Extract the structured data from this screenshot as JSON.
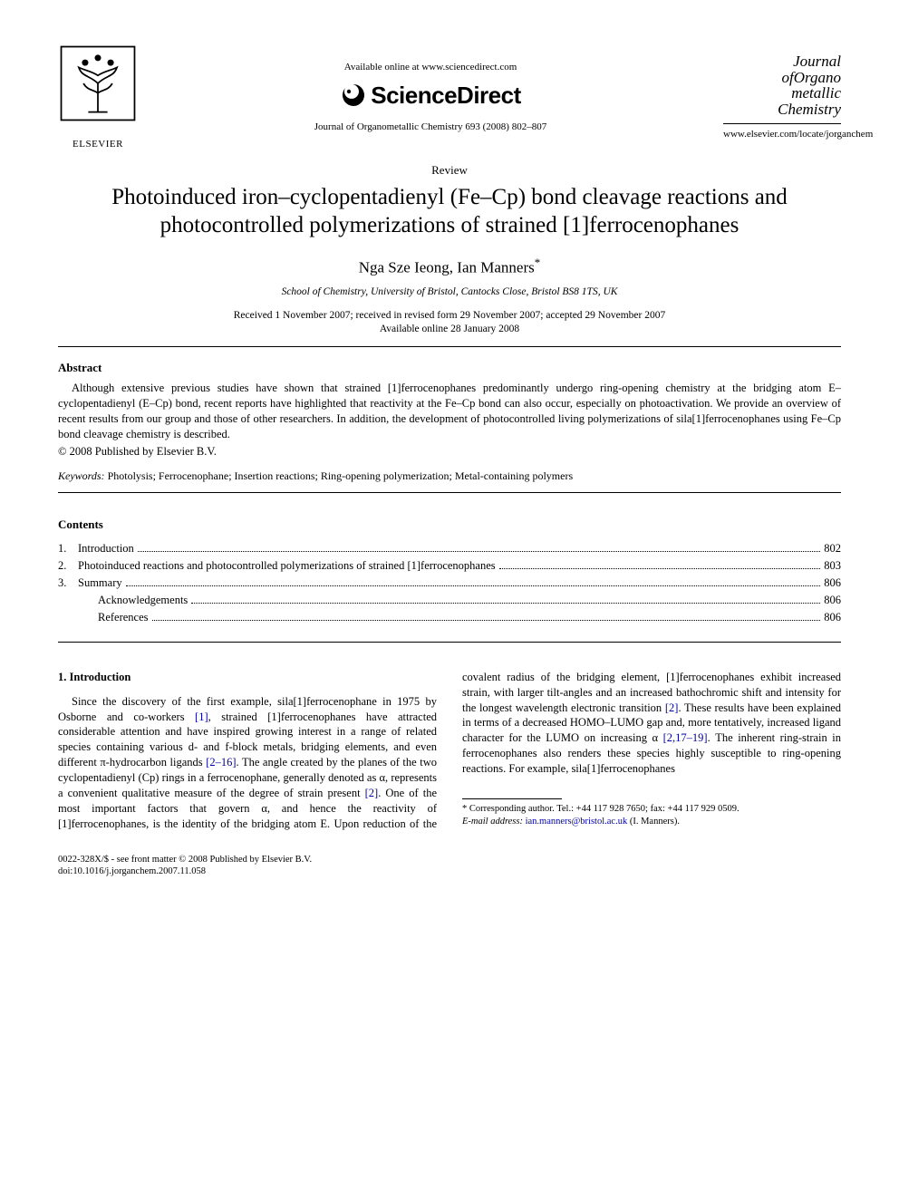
{
  "header": {
    "available_online": "Available online at www.sciencedirect.com",
    "sciencedirect": "ScienceDirect",
    "citation": "Journal of Organometallic Chemistry 693 (2008) 802–807",
    "publisher_name": "ELSEVIER",
    "journal_logo_lines": [
      "Journal",
      "ofOrgano",
      "metallic",
      "Chemistry"
    ],
    "journal_url": "www.elsevier.com/locate/jorganchem"
  },
  "article": {
    "type": "Review",
    "title": "Photoinduced iron–cyclopentadienyl (Fe–Cp) bond cleavage reactions and photocontrolled polymerizations of strained [1]ferrocenophanes",
    "authors": "Nga Sze Ieong, Ian Manners",
    "corr_marker": "*",
    "affiliation": "School of Chemistry, University of Bristol, Cantocks Close, Bristol BS8 1TS, UK",
    "received_line": "Received 1 November 2007; received in revised form 29 November 2007; accepted 29 November 2007",
    "available_line": "Available online 28 January 2008"
  },
  "abstract": {
    "heading": "Abstract",
    "body": "Although extensive previous studies have shown that strained [1]ferrocenophanes predominantly undergo ring-opening chemistry at the bridging atom E–cyclopentadienyl (E–Cp) bond, recent reports have highlighted that reactivity at the Fe–Cp bond can also occur, especially on photoactivation. We provide an overview of recent results from our group and those of other researchers. In addition, the development of photocontrolled living polymerizations of sila[1]ferrocenophanes using Fe–Cp bond cleavage chemistry is described.",
    "copyright": "© 2008 Published by Elsevier B.V."
  },
  "keywords": {
    "label": "Keywords:",
    "list": " Photolysis; Ferrocenophane; Insertion reactions; Ring-opening polymerization; Metal-containing polymers"
  },
  "contents": {
    "heading": "Contents",
    "items": [
      {
        "num": "1.",
        "title": "Introduction",
        "page": "802"
      },
      {
        "num": "2.",
        "title": "Photoinduced reactions and photocontrolled polymerizations of strained [1]ferrocenophanes",
        "page": "803"
      },
      {
        "num": "3.",
        "title": "Summary",
        "page": "806"
      },
      {
        "num": "",
        "title": "Acknowledgements",
        "page": "806",
        "indent": true
      },
      {
        "num": "",
        "title": "References",
        "page": "806",
        "indent": true
      }
    ]
  },
  "body": {
    "s1_heading": "1. Introduction",
    "p1a": "Since the discovery of the first example, sila[1]ferrocenophane in 1975 by Osborne and co-workers ",
    "ref1": "[1]",
    "p1b": ", strained [1]ferrocenophanes have attracted considerable attention and have inspired growing interest in a range of related species containing various d- and f-block metals, bridging elements, and even different π-hydrocarbon ligands ",
    "ref2": "[2–16]",
    "p1c": ". The angle created by the planes of the two cyclopentadienyl (Cp) rings in a ferrocenophane, generally denoted as α,",
    "p2a": "represents a convenient qualitative measure of the degree of strain present ",
    "ref3": "[2]",
    "p2b": ". One of the most important factors that govern α, and hence the reactivity of [1]ferrocenophanes, is the identity of the bridging atom E. Upon reduction of the covalent radius of the bridging element, [1]ferrocenophanes exhibit increased strain, with larger tilt-angles and an increased bathochromic shift and intensity for the longest wavelength electronic transition ",
    "ref4": "[2]",
    "p2c": ". These results have been explained in terms of a decreased HOMO–LUMO gap and, more tentatively, increased ligand character for the LUMO on increasing α ",
    "ref5": "[2,17–19]",
    "p2d": ". The inherent ring-strain in ferrocenophanes also renders these species highly susceptible to ring-opening reactions. For example, sila[1]ferrocenophanes"
  },
  "footnotes": {
    "corr": "Corresponding author. Tel.: +44 117 928 7650; fax: +44 117 929 0509.",
    "email_label": "E-mail address:",
    "email": "ian.manners@bristol.ac.uk",
    "email_attribution": " (I. Manners)."
  },
  "bottom": {
    "front_matter": "0022-328X/$ - see front matter © 2008 Published by Elsevier B.V.",
    "doi": "doi:10.1016/j.jorganchem.2007.11.058"
  },
  "colors": {
    "link": "#0000a0",
    "text": "#000000",
    "bg": "#ffffff"
  }
}
